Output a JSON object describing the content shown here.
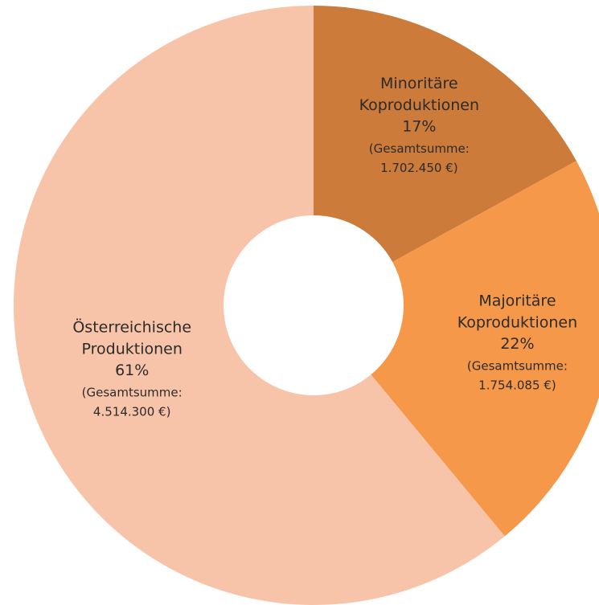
{
  "chart_data": {
    "type": "pie",
    "categories": [
      "Minoritäre Koproduktionen",
      "Majoritäre Koproduktionen",
      "Österreichische Produktionen"
    ],
    "values": [
      17,
      22,
      61
    ],
    "value_labels": [
      "17%",
      "22%",
      "61%"
    ],
    "annotations": [
      "(Gesamtsumme: 1.702.450 €)",
      "(Gesamtsumme: 1.754.085 €)",
      "(Gesamtsumme: 4.514.300 €)"
    ],
    "colors": [
      "#cc7b3a",
      "#f5984a",
      "#f8c4a9"
    ],
    "donut": true
  }
}
